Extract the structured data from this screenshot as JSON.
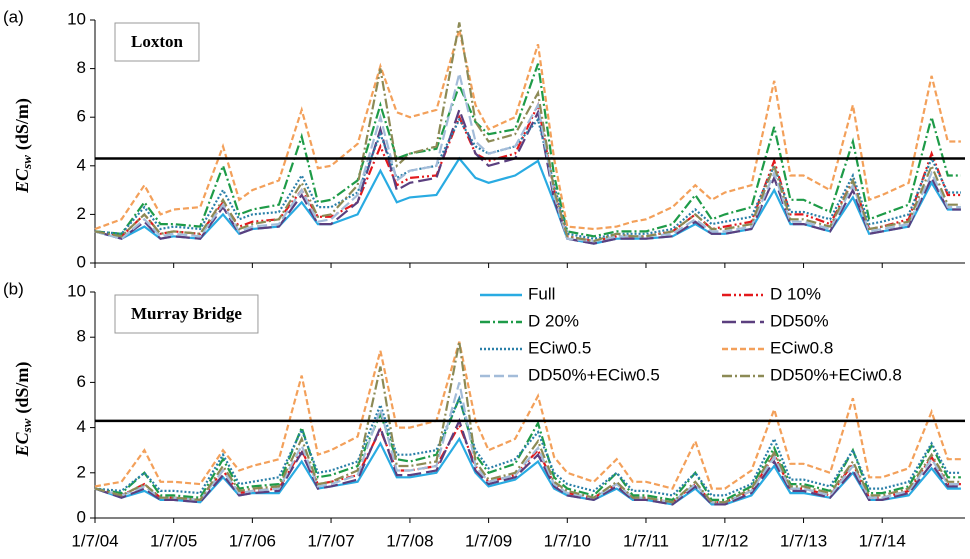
{
  "chart_data": [
    {
      "type": "line",
      "panel": "(a)",
      "site": "Loxton",
      "ylabel": {
        "main": "EC",
        "sub": "sw",
        "unit": "(dS/m)"
      },
      "ylim": [
        0,
        10
      ],
      "yticks": [
        0,
        2,
        4,
        6,
        8,
        10
      ],
      "xlim": [
        "2004-07-01",
        "2015-07-20"
      ],
      "hline": 4.3,
      "x": [
        "2004-07-01",
        "2004-11-01",
        "2005-02-15",
        "2005-05-01",
        "2005-07-01",
        "2005-11-01",
        "2006-02-15",
        "2006-05-01",
        "2006-07-01",
        "2006-11-01",
        "2007-02-15",
        "2007-05-01",
        "2007-07-01",
        "2007-11-01",
        "2008-02-15",
        "2008-05-01",
        "2008-07-01",
        "2008-11-01",
        "2009-02-15",
        "2009-05-01",
        "2009-07-01",
        "2009-11-01",
        "2010-02-15",
        "2010-05-01",
        "2010-07-01",
        "2010-11-01",
        "2011-02-15",
        "2011-05-01",
        "2011-07-01",
        "2011-11-01",
        "2012-02-15",
        "2012-05-01",
        "2012-07-01",
        "2012-11-01",
        "2013-02-15",
        "2013-05-01",
        "2013-07-01",
        "2013-11-01",
        "2014-02-15",
        "2014-05-01",
        "2014-07-01",
        "2014-11-01",
        "2015-02-15",
        "2015-05-01",
        "2015-07-01"
      ],
      "series": [
        {
          "name": "Full",
          "color": "#29abe2",
          "dash": "solid",
          "values": [
            1.3,
            1.0,
            1.5,
            1.0,
            1.1,
            1.0,
            2.0,
            1.2,
            1.4,
            1.5,
            2.5,
            1.6,
            1.6,
            2.0,
            3.8,
            2.5,
            2.7,
            2.8,
            4.3,
            3.5,
            3.3,
            3.6,
            4.2,
            2.5,
            1.0,
            0.8,
            1.0,
            1.0,
            1.0,
            1.1,
            1.6,
            1.2,
            1.2,
            1.4,
            3.0,
            1.6,
            1.6,
            1.3,
            2.7,
            1.2,
            1.3,
            1.5,
            3.3,
            2.2,
            2.2
          ]
        },
        {
          "name": "D 10%",
          "color": "#e3191c",
          "dash": "dashdotdot",
          "values": [
            1.3,
            1.1,
            2.0,
            1.2,
            1.3,
            1.2,
            2.5,
            1.5,
            1.7,
            1.8,
            3.0,
            1.9,
            1.9,
            2.5,
            4.8,
            3.2,
            3.5,
            3.6,
            6.0,
            4.5,
            4.2,
            4.5,
            6.5,
            3.0,
            1.1,
            0.9,
            1.1,
            1.1,
            1.1,
            1.3,
            2.0,
            1.4,
            1.5,
            1.7,
            4.2,
            2.0,
            2.0,
            1.6,
            3.4,
            1.4,
            1.5,
            1.8,
            4.5,
            2.8,
            2.8
          ]
        },
        {
          "name": "D 20%",
          "color": "#1e9b48",
          "dash": "dashdot",
          "values": [
            1.3,
            1.2,
            2.5,
            1.6,
            1.6,
            1.5,
            4.0,
            2.0,
            2.2,
            2.4,
            5.2,
            2.5,
            2.6,
            3.4,
            6.5,
            4.3,
            4.5,
            4.7,
            7.3,
            5.8,
            5.3,
            5.5,
            8.2,
            3.6,
            1.3,
            1.1,
            1.3,
            1.3,
            1.3,
            1.6,
            2.8,
            1.8,
            2.0,
            2.3,
            5.6,
            2.6,
            2.6,
            2.1,
            5.0,
            1.8,
            2.0,
            2.4,
            6.0,
            3.6,
            3.6
          ]
        },
        {
          "name": "DD50%",
          "color": "#5b3f7f",
          "dash": "long",
          "values": [
            1.3,
            1.0,
            1.7,
            1.0,
            1.1,
            1.0,
            2.3,
            1.2,
            1.4,
            1.5,
            2.8,
            1.6,
            1.6,
            2.5,
            5.5,
            3.0,
            3.3,
            3.5,
            6.3,
            4.5,
            4.0,
            4.3,
            6.2,
            2.6,
            1.0,
            0.8,
            1.0,
            1.0,
            1.0,
            1.1,
            1.7,
            1.2,
            1.2,
            1.4,
            3.5,
            1.6,
            1.6,
            1.3,
            3.0,
            1.2,
            1.3,
            1.5,
            3.5,
            2.2,
            2.2
          ]
        },
        {
          "name": "ECiw0.5",
          "color": "#2a7fa8",
          "dash": "dot",
          "values": [
            1.3,
            1.2,
            2.3,
            1.4,
            1.5,
            1.4,
            3.0,
            1.8,
            2.0,
            2.1,
            3.6,
            2.3,
            2.3,
            2.9,
            5.3,
            3.5,
            3.8,
            4.0,
            5.9,
            4.8,
            4.5,
            4.8,
            5.9,
            3.2,
            1.2,
            1.0,
            1.2,
            1.2,
            1.2,
            1.4,
            2.2,
            1.6,
            1.7,
            1.9,
            4.0,
            2.1,
            2.1,
            1.8,
            3.6,
            1.6,
            1.7,
            2.0,
            4.3,
            2.9,
            2.9
          ]
        },
        {
          "name": "ECiw0.8",
          "color": "#f3a05a",
          "dash": "dash",
          "values": [
            1.4,
            1.8,
            3.2,
            2.0,
            2.2,
            2.3,
            4.8,
            2.6,
            3.0,
            3.4,
            6.3,
            3.9,
            4.0,
            4.9,
            8.1,
            6.2,
            6.0,
            6.3,
            9.6,
            6.5,
            5.5,
            6.0,
            9.0,
            4.3,
            1.5,
            1.4,
            1.5,
            1.7,
            1.8,
            2.3,
            3.2,
            2.6,
            2.9,
            3.2,
            7.5,
            3.6,
            3.6,
            3.0,
            6.5,
            2.6,
            2.8,
            3.3,
            7.7,
            5.0,
            5.0
          ]
        },
        {
          "name": "DD50%+ECiw0.5",
          "color": "#a3bcd9",
          "dash": "midlong",
          "values": [
            1.3,
            1.0,
            1.8,
            1.1,
            1.2,
            1.1,
            2.4,
            1.3,
            1.5,
            1.6,
            3.0,
            1.7,
            1.8,
            2.8,
            6.0,
            3.4,
            3.8,
            4.0,
            7.8,
            5.0,
            4.5,
            4.8,
            6.5,
            2.8,
            1.0,
            0.9,
            1.1,
            1.1,
            1.1,
            1.2,
            1.8,
            1.3,
            1.3,
            1.5,
            3.7,
            1.7,
            1.7,
            1.4,
            3.2,
            1.3,
            1.4,
            1.6,
            3.7,
            2.3,
            2.3
          ]
        },
        {
          "name": "DD50%+ECiw0.8",
          "color": "#8c8a55",
          "dash": "dashdot",
          "values": [
            1.3,
            1.1,
            2.0,
            1.2,
            1.3,
            1.2,
            2.6,
            1.4,
            1.6,
            1.8,
            3.3,
            1.9,
            2.0,
            3.2,
            8.0,
            4.0,
            4.5,
            4.8,
            9.9,
            5.8,
            5.0,
            5.3,
            7.0,
            3.0,
            1.1,
            0.9,
            1.2,
            1.1,
            1.1,
            1.3,
            2.0,
            1.4,
            1.4,
            1.6,
            4.0,
            1.8,
            1.8,
            1.5,
            3.4,
            1.4,
            1.5,
            1.7,
            4.0,
            2.4,
            2.4
          ]
        }
      ]
    },
    {
      "type": "line",
      "panel": "(b)",
      "site": "Murray Bridge",
      "ylabel": {
        "main": "EC",
        "sub": "sw",
        "unit": "(dS/m)"
      },
      "ylim": [
        0,
        10
      ],
      "yticks": [
        0,
        2,
        4,
        6,
        8,
        10
      ],
      "xlim": [
        "2004-07-01",
        "2015-07-20"
      ],
      "hline": 4.3,
      "xticks": [
        {
          "value": "2004-07-01",
          "label": "1/7/04"
        },
        {
          "value": "2005-07-01",
          "label": "1/7/05"
        },
        {
          "value": "2006-07-01",
          "label": "1/7/06"
        },
        {
          "value": "2007-07-01",
          "label": "1/7/07"
        },
        {
          "value": "2008-07-01",
          "label": "1/7/08"
        },
        {
          "value": "2009-07-01",
          "label": "1/7/09"
        },
        {
          "value": "2010-07-01",
          "label": "1/7/10"
        },
        {
          "value": "2011-07-01",
          "label": "1/7/11"
        },
        {
          "value": "2012-07-01",
          "label": "1/7/12"
        },
        {
          "value": "2013-07-01",
          "label": "1/7/13"
        },
        {
          "value": "2014-07-01",
          "label": "1/7/14"
        }
      ],
      "legend": "upper right",
      "x": [
        "2004-07-01",
        "2004-11-01",
        "2005-02-15",
        "2005-05-01",
        "2005-07-01",
        "2005-11-01",
        "2006-02-15",
        "2006-05-01",
        "2006-07-01",
        "2006-11-01",
        "2007-02-15",
        "2007-05-01",
        "2007-07-01",
        "2007-11-01",
        "2008-02-15",
        "2008-05-01",
        "2008-07-01",
        "2008-11-01",
        "2009-02-15",
        "2009-05-01",
        "2009-07-01",
        "2009-11-01",
        "2010-02-15",
        "2010-05-01",
        "2010-07-01",
        "2010-11-01",
        "2011-02-15",
        "2011-05-01",
        "2011-07-01",
        "2011-11-01",
        "2012-02-15",
        "2012-05-01",
        "2012-07-01",
        "2012-11-01",
        "2013-02-15",
        "2013-05-01",
        "2013-07-01",
        "2013-11-01",
        "2014-02-15",
        "2014-05-01",
        "2014-07-01",
        "2014-11-01",
        "2015-02-15",
        "2015-05-01",
        "2015-07-01"
      ],
      "series": [
        {
          "name": "Full",
          "color": "#29abe2",
          "dash": "solid",
          "values": [
            1.3,
            0.9,
            1.2,
            0.8,
            0.8,
            0.7,
            1.8,
            1.0,
            1.1,
            1.1,
            2.5,
            1.3,
            1.4,
            1.6,
            3.3,
            1.8,
            1.8,
            2.0,
            3.5,
            2.0,
            1.4,
            1.7,
            2.5,
            1.3,
            1.0,
            0.8,
            1.3,
            0.8,
            0.8,
            0.6,
            1.3,
            0.6,
            0.6,
            1.0,
            2.3,
            1.1,
            1.1,
            0.9,
            2.0,
            0.8,
            0.8,
            1.0,
            2.2,
            1.3,
            1.3
          ]
        },
        {
          "name": "D 10%",
          "color": "#e3191c",
          "dash": "dashdotdot",
          "values": [
            1.3,
            1.0,
            1.5,
            0.9,
            0.9,
            0.8,
            2.1,
            1.1,
            1.2,
            1.3,
            3.0,
            1.5,
            1.6,
            1.9,
            3.9,
            2.1,
            2.1,
            2.3,
            4.1,
            2.3,
            1.6,
            1.9,
            3.0,
            1.5,
            1.1,
            0.9,
            1.5,
            0.9,
            0.9,
            0.7,
            1.5,
            0.7,
            0.7,
            1.2,
            2.8,
            1.3,
            1.3,
            1.0,
            2.4,
            0.9,
            0.9,
            1.2,
            2.7,
            1.5,
            1.5
          ]
        },
        {
          "name": "D 20%",
          "color": "#1e9b48",
          "dash": "dashdot",
          "values": [
            1.3,
            1.1,
            2.0,
            1.0,
            1.0,
            0.9,
            2.6,
            1.3,
            1.4,
            1.5,
            4.0,
            1.8,
            1.9,
            2.3,
            4.6,
            2.6,
            2.5,
            2.8,
            5.3,
            2.8,
            2.0,
            2.4,
            4.2,
            1.8,
            1.3,
            1.0,
            2.0,
            1.0,
            1.0,
            0.8,
            2.0,
            0.8,
            0.8,
            1.4,
            3.1,
            1.5,
            1.5,
            1.2,
            3.0,
            1.1,
            1.1,
            1.4,
            3.2,
            1.8,
            1.8
          ]
        },
        {
          "name": "DD50%",
          "color": "#5b3f7f",
          "dash": "long",
          "values": [
            1.3,
            0.9,
            1.3,
            0.8,
            0.8,
            0.7,
            1.9,
            1.0,
            1.1,
            1.2,
            2.9,
            1.3,
            1.4,
            1.7,
            4.0,
            1.9,
            1.9,
            2.1,
            4.3,
            2.1,
            1.5,
            1.8,
            2.8,
            1.4,
            1.0,
            0.8,
            1.4,
            0.8,
            0.8,
            0.6,
            1.4,
            0.6,
            0.6,
            1.1,
            2.5,
            1.2,
            1.2,
            0.9,
            2.1,
            0.8,
            0.8,
            1.1,
            2.4,
            1.4,
            1.4
          ]
        },
        {
          "name": "ECiw0.5",
          "color": "#2a7fa8",
          "dash": "dot",
          "values": [
            1.3,
            1.2,
            2.0,
            1.2,
            1.2,
            1.1,
            2.8,
            1.5,
            1.6,
            1.8,
            3.9,
            2.0,
            2.1,
            2.5,
            5.0,
            2.8,
            2.8,
            3.0,
            5.3,
            3.0,
            2.2,
            2.6,
            3.8,
            2.0,
            1.5,
            1.2,
            2.0,
            1.2,
            1.2,
            1.0,
            2.0,
            1.0,
            1.0,
            1.5,
            3.5,
            1.7,
            1.7,
            1.4,
            3.0,
            1.3,
            1.3,
            1.6,
            3.3,
            2.0,
            2.0
          ]
        },
        {
          "name": "ECiw0.8",
          "color": "#f3a05a",
          "dash": "dash",
          "values": [
            1.4,
            1.6,
            3.0,
            1.6,
            1.6,
            1.5,
            3.0,
            2.1,
            2.3,
            2.6,
            6.3,
            2.8,
            3.0,
            3.6,
            7.4,
            4.0,
            4.0,
            4.3,
            7.8,
            4.3,
            3.0,
            3.5,
            5.4,
            2.7,
            2.0,
            1.6,
            2.6,
            1.6,
            1.6,
            1.3,
            3.4,
            1.3,
            1.3,
            2.1,
            4.8,
            2.4,
            2.4,
            2.0,
            5.3,
            1.8,
            1.8,
            2.2,
            4.7,
            2.6,
            2.6
          ]
        },
        {
          "name": "DD50%+ECiw0.5",
          "color": "#a3bcd9",
          "dash": "midlong",
          "values": [
            1.3,
            1.0,
            1.4,
            0.9,
            0.9,
            0.8,
            2.1,
            1.1,
            1.2,
            1.3,
            3.2,
            1.4,
            1.5,
            1.9,
            4.8,
            2.1,
            2.1,
            2.3,
            6.0,
            2.3,
            1.6,
            1.9,
            3.1,
            1.5,
            1.1,
            0.9,
            1.5,
            0.9,
            0.9,
            0.7,
            1.5,
            0.7,
            0.7,
            1.2,
            2.7,
            1.3,
            1.3,
            1.0,
            2.3,
            0.9,
            0.9,
            1.2,
            2.6,
            1.5,
            1.5
          ]
        },
        {
          "name": "DD50%+ECiw0.8",
          "color": "#8c8a55",
          "dash": "dashdot",
          "values": [
            1.3,
            1.0,
            1.5,
            0.9,
            0.9,
            0.8,
            2.3,
            1.2,
            1.3,
            1.4,
            3.5,
            1.5,
            1.6,
            2.1,
            6.7,
            2.3,
            2.3,
            2.5,
            7.8,
            2.5,
            1.7,
            2.0,
            3.4,
            1.6,
            1.2,
            0.9,
            1.6,
            0.9,
            0.9,
            0.7,
            1.6,
            0.7,
            0.7,
            1.3,
            2.9,
            1.4,
            1.4,
            1.1,
            2.5,
            1.0,
            1.0,
            1.3,
            2.8,
            1.6,
            1.6
          ]
        }
      ]
    }
  ]
}
